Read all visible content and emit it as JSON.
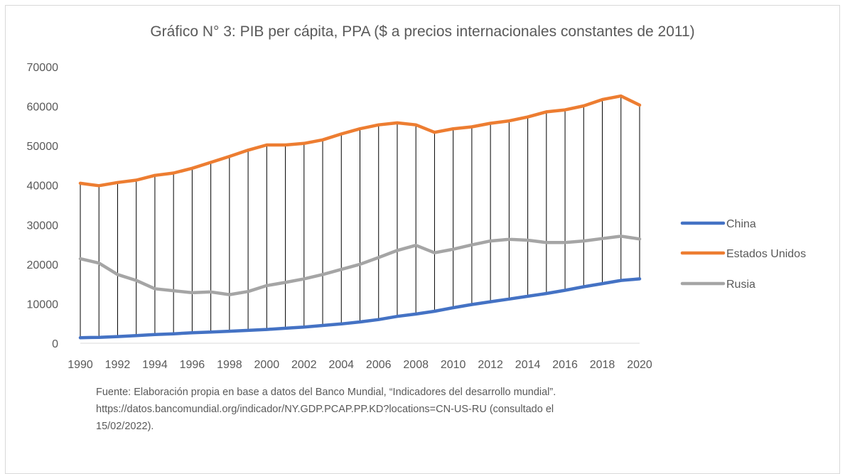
{
  "chart_data": {
    "type": "line",
    "title": "Gráfico N° 3: PIB per cápita, PPA ($ a precios internacionales constantes de 2011)",
    "x": [
      1990,
      1991,
      1992,
      1993,
      1994,
      1995,
      1996,
      1997,
      1998,
      1999,
      2000,
      2001,
      2002,
      2003,
      2004,
      2005,
      2006,
      2007,
      2008,
      2009,
      2010,
      2011,
      2012,
      2013,
      2014,
      2015,
      2016,
      2017,
      2018,
      2019,
      2020
    ],
    "x_tick_labels": [
      "1990",
      "1992",
      "1994",
      "1996",
      "1998",
      "2000",
      "2002",
      "2004",
      "2006",
      "2008",
      "2010",
      "2012",
      "2014",
      "2016",
      "2018",
      "2020"
    ],
    "y_tick_labels": [
      "0",
      "10000",
      "20000",
      "30000",
      "40000",
      "50000",
      "60000",
      "70000"
    ],
    "ylim": [
      0,
      70000
    ],
    "grid": false,
    "drop_lines": true,
    "legend_position": "right",
    "series": [
      {
        "name": "China",
        "color": "#4472c4",
        "values": [
          1400,
          1500,
          1700,
          1950,
          2200,
          2400,
          2650,
          2850,
          3050,
          3250,
          3500,
          3800,
          4100,
          4500,
          4900,
          5400,
          6000,
          6800,
          7400,
          8100,
          9000,
          9800,
          10500,
          11200,
          11900,
          12600,
          13400,
          14300,
          15100,
          15900,
          16300
        ]
      },
      {
        "name": "Estados Unidos",
        "color": "#ed7d31",
        "values": [
          40500,
          39900,
          40700,
          41300,
          42500,
          43100,
          44300,
          45800,
          47300,
          48900,
          50200,
          50200,
          50600,
          51500,
          53000,
          54300,
          55300,
          55800,
          55300,
          53400,
          54300,
          54800,
          55700,
          56300,
          57300,
          58600,
          59100,
          60100,
          61700,
          62600,
          60300
        ]
      },
      {
        "name": "Rusia",
        "color": "#a5a5a5",
        "values": [
          21400,
          20300,
          17400,
          15900,
          13800,
          13300,
          12800,
          13000,
          12300,
          13100,
          14600,
          15400,
          16300,
          17400,
          18700,
          20000,
          21700,
          23500,
          24800,
          22900,
          23800,
          24900,
          25900,
          26300,
          26100,
          25500,
          25500,
          25900,
          26500,
          27100,
          26400
        ]
      }
    ]
  },
  "source_note": {
    "line1": "Fuente: Elaboración propia en base a datos del Banco Mundial, “Indicadores del desarrollo mundial”.",
    "line2": "https://datos.bancomundial.org/indicador/NY.GDP.PCAP.PP.KD?locations=CN-US-RU   (consultado   el",
    "line3": "15/02/2022)."
  }
}
